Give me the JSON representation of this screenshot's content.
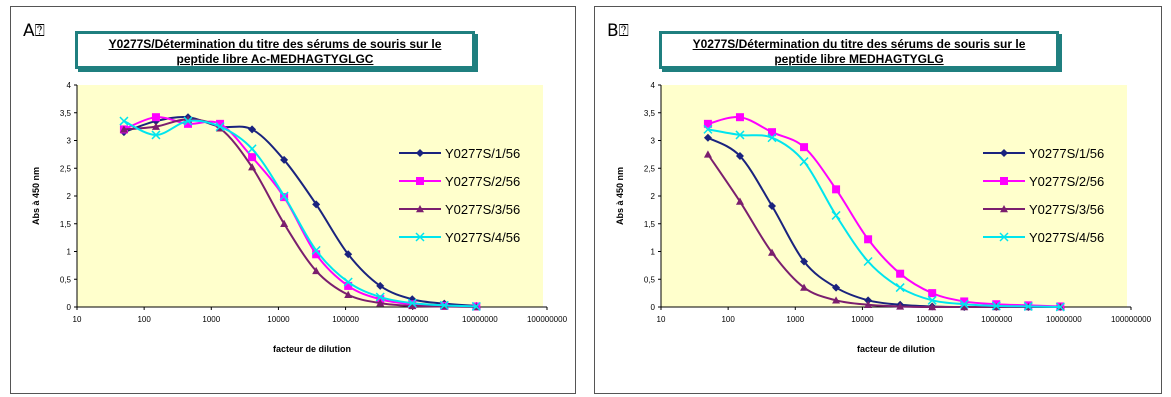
{
  "chart_data": [
    {
      "type": "line",
      "panel": "A",
      "title_line1": "Y0277S/Détermination du titre des sérums de souris sur le",
      "title_line2": "peptide libre Ac-MEDHAGTYGLGC",
      "xlabel": "facteur de dilution",
      "ylabel": "Abs à 450 nm",
      "x_scale": "log",
      "xlim": [
        10,
        100000000
      ],
      "ylim": [
        0,
        4
      ],
      "x_ticks": [
        "10",
        "100",
        "1000",
        "10000",
        "100000",
        "1000000",
        "10000000",
        "100000000"
      ],
      "y_ticks": [
        "0",
        "0,5",
        "1",
        "1,5",
        "2",
        "2,5",
        "3",
        "3,5",
        "4"
      ],
      "x": [
        50,
        150,
        450,
        1350,
        4050,
        12150,
        36450,
        109350,
        328050,
        984150,
        2952450,
        8857350
      ],
      "legend_position": "right",
      "series": [
        {
          "name": "Y0277S/1/56",
          "color": "#1a237e",
          "marker": "diamond",
          "values": [
            3.15,
            3.35,
            3.42,
            3.25,
            3.2,
            2.65,
            1.85,
            0.95,
            0.38,
            0.14,
            0.06,
            0.02
          ]
        },
        {
          "name": "Y0277S/2/56",
          "color": "#ff00ff",
          "marker": "square",
          "values": [
            3.2,
            3.42,
            3.3,
            3.3,
            2.7,
            1.98,
            0.95,
            0.38,
            0.14,
            0.05,
            0.02,
            0.01
          ]
        },
        {
          "name": "Y0277S/3/56",
          "color": "#7b1f6e",
          "marker": "triangle",
          "values": [
            3.2,
            3.25,
            3.38,
            3.22,
            2.52,
            1.5,
            0.65,
            0.22,
            0.07,
            0.02,
            0.01,
            0.0
          ]
        },
        {
          "name": "Y0277S/4/56",
          "color": "#00e5ee",
          "marker": "x",
          "values": [
            3.35,
            3.1,
            3.35,
            3.25,
            2.85,
            2.0,
            1.02,
            0.45,
            0.18,
            0.07,
            0.03,
            0.01
          ]
        }
      ]
    },
    {
      "type": "line",
      "panel": "B",
      "title_line1": "Y0277S/Détermination du titre des sérums de souris sur le",
      "title_line2": "peptide libre MEDHAGTYGLG",
      "xlabel": "facteur de dilution",
      "ylabel": "Abs à 450 nm",
      "x_scale": "log",
      "xlim": [
        10,
        100000000
      ],
      "ylim": [
        0,
        4
      ],
      "x_ticks": [
        "10",
        "100",
        "1000",
        "10000",
        "100000",
        "1000000",
        "10000000",
        "100000000"
      ],
      "y_ticks": [
        "0",
        "0,5",
        "1",
        "1,5",
        "2",
        "2,5",
        "3",
        "3,5",
        "4"
      ],
      "x": [
        50,
        150,
        450,
        1350,
        4050,
        12150,
        36450,
        109350,
        328050,
        984150,
        2952450,
        8857350
      ],
      "legend_position": "right",
      "series": [
        {
          "name": "Y0277S/1/56",
          "color": "#1a237e",
          "marker": "diamond",
          "values": [
            3.05,
            2.72,
            1.82,
            0.82,
            0.35,
            0.12,
            0.04,
            0.01,
            0.0,
            0.0,
            0.0,
            0.0
          ]
        },
        {
          "name": "Y0277S/2/56",
          "color": "#ff00ff",
          "marker": "square",
          "values": [
            3.3,
            3.42,
            3.15,
            2.88,
            2.12,
            1.22,
            0.6,
            0.25,
            0.1,
            0.05,
            0.03,
            0.01
          ]
        },
        {
          "name": "Y0277S/3/56",
          "color": "#7b1f6e",
          "marker": "triangle",
          "values": [
            2.75,
            1.9,
            0.98,
            0.35,
            0.12,
            0.04,
            0.01,
            0.0,
            0.0,
            0.0,
            0.0,
            0.0
          ]
        },
        {
          "name": "Y0277S/4/56",
          "color": "#00e5ee",
          "marker": "x",
          "values": [
            3.2,
            3.1,
            3.05,
            2.62,
            1.65,
            0.82,
            0.35,
            0.12,
            0.05,
            0.02,
            0.01,
            0.0
          ]
        }
      ]
    }
  ]
}
